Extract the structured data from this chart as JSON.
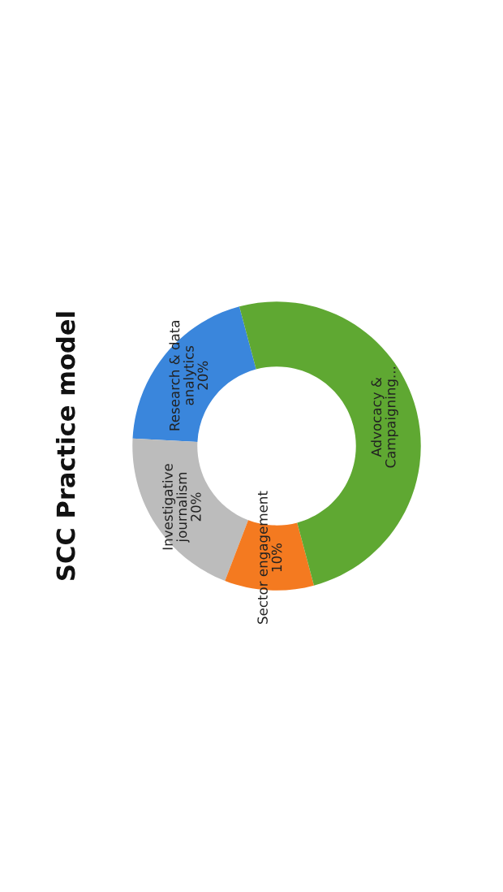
{
  "chart_data": {
    "type": "donut",
    "title": "SCC Practice model",
    "categories": [
      "Research & data\nanalytics",
      "Investigative\njournalism",
      "Sector engagement",
      "Advocacy &\nCampaigning..."
    ],
    "values": [
      20,
      20,
      10,
      50
    ],
    "colors": [
      "#3a86dc",
      "#bcbcbc",
      "#f47a20",
      "#5fa832"
    ],
    "value_labels": [
      "20%",
      "20%",
      "10%",
      null
    ]
  }
}
